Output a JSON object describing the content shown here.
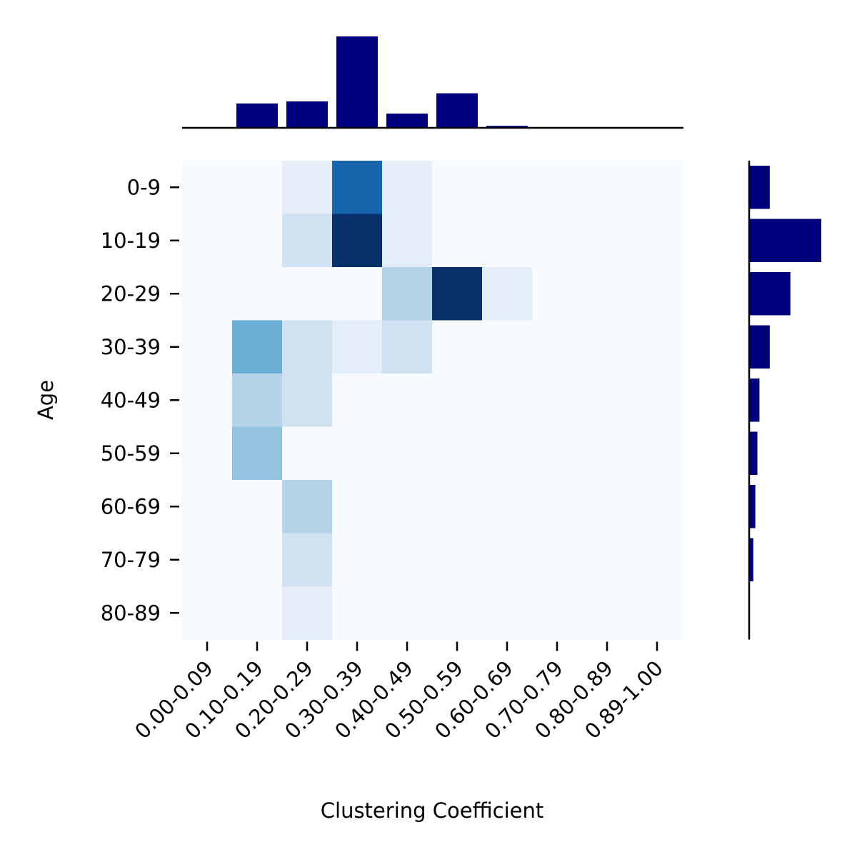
{
  "chart_data": {
    "type": "heatmap",
    "xlabel": "Clustering Coefficient",
    "ylabel": "Age",
    "x_categories": [
      "0.00-0.09",
      "0.10-0.19",
      "0.20-0.29",
      "0.30-0.39",
      "0.40-0.49",
      "0.50-0.59",
      "0.60-0.69",
      "0.70-0.79",
      "0.80-0.89",
      "0.89-1.00"
    ],
    "y_categories": [
      "0-9",
      "10-19",
      "20-29",
      "30-39",
      "40-49",
      "50-59",
      "60-69",
      "70-79",
      "80-89"
    ],
    "colormap": "Blues",
    "vmin": 0,
    "vmax": 10,
    "matrix": [
      [
        0,
        0,
        1,
        8,
        1,
        0,
        0,
        0,
        0,
        0
      ],
      [
        0,
        0,
        2,
        10,
        1,
        0,
        0,
        0,
        0,
        0
      ],
      [
        0,
        0,
        0,
        0,
        3,
        10,
        1,
        0,
        0,
        0
      ],
      [
        0,
        5,
        2,
        1,
        2,
        0,
        0,
        0,
        0,
        0
      ],
      [
        0,
        3,
        2,
        0,
        0,
        0,
        0,
        0,
        0,
        0
      ],
      [
        0,
        4,
        0,
        0,
        0,
        0,
        0,
        0,
        0,
        0
      ],
      [
        0,
        0,
        3,
        0,
        0,
        0,
        0,
        0,
        0,
        0
      ],
      [
        0,
        0,
        2,
        0,
        0,
        0,
        0,
        0,
        0,
        0
      ],
      [
        0,
        0,
        1,
        0,
        0,
        0,
        0,
        0,
        0,
        0
      ]
    ],
    "top_marginal": {
      "orientation": "vertical-bars",
      "color": "#00007f",
      "values": [
        0,
        12,
        13,
        45,
        7,
        17,
        1,
        0,
        0,
        0
      ]
    },
    "right_marginal": {
      "orientation": "horizontal-bars",
      "color": "#00007f",
      "values": [
        10,
        35,
        20,
        10,
        5,
        4,
        3,
        2,
        0
      ]
    }
  }
}
